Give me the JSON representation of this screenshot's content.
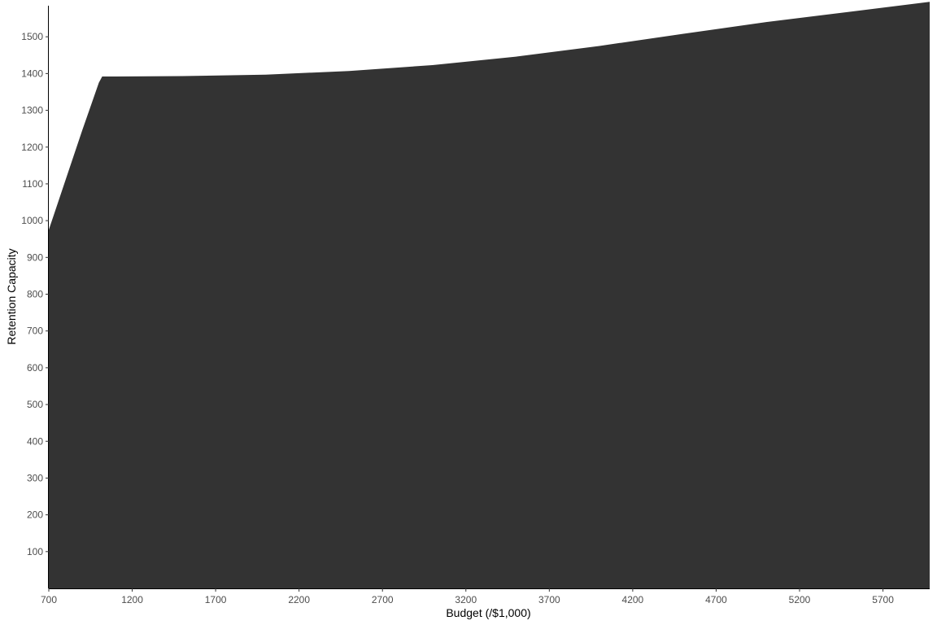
{
  "chart_data": {
    "type": "area",
    "title": "",
    "xlabel": "Budget (/$1,000)",
    "ylabel": "Retention Capacity",
    "xlim": [
      700,
      5980
    ],
    "ylim": [
      0,
      1600
    ],
    "x_ticks": [
      700,
      1200,
      1700,
      2200,
      2700,
      3200,
      3700,
      4200,
      4700,
      5200,
      5700
    ],
    "y_ticks": [
      100,
      200,
      300,
      400,
      500,
      600,
      700,
      800,
      900,
      1000,
      1100,
      1200,
      1300,
      1400,
      1500
    ],
    "grid": false,
    "legend": "none",
    "fill_color": "#333333",
    "series": [
      {
        "x": [
          700,
          800,
          900,
          1000,
          1020,
          1100,
          1500,
          2000,
          2500,
          3000,
          3500,
          4000,
          4500,
          5000,
          5500,
          5980
        ],
        "values": [
          975,
          1110,
          1245,
          1375,
          1392,
          1392,
          1393,
          1397,
          1407,
          1423,
          1446,
          1475,
          1508,
          1540,
          1568,
          1595
        ]
      }
    ]
  }
}
